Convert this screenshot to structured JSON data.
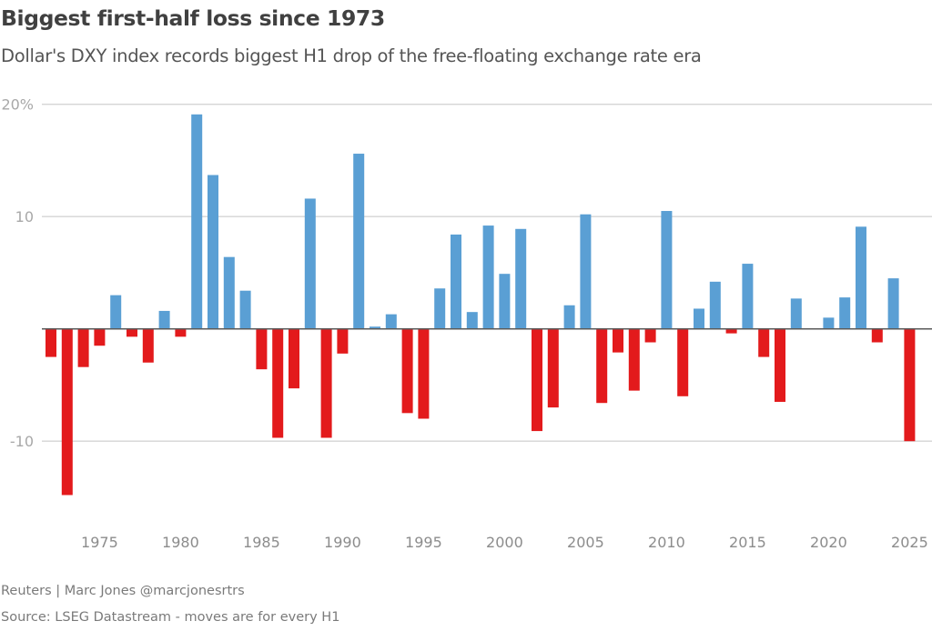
{
  "header": {
    "title": "Biggest first-half loss since 1973",
    "subtitle": "Dollar's DXY index records biggest H1 drop of the free-floating exchange rate era"
  },
  "footer": {
    "credit": "Reuters | Marc Jones @marcjonesrtrs",
    "source": "Source: LSEG Datastream - moves are for every H1"
  },
  "colors": {
    "positive": "#5a9fd4",
    "negative": "#e31a1c",
    "zero_line": "#5a5a5a",
    "grid": "#d4d4d4"
  },
  "chart_data": {
    "type": "bar",
    "title": "Biggest first-half loss since 1973",
    "subtitle": "Dollar's DXY index records biggest H1 drop of the free-floating exchange rate era",
    "xlabel": "",
    "ylabel": "",
    "ylim": [
      -17,
      20
    ],
    "yticks": [
      20,
      10,
      -10
    ],
    "ytick_labels": [
      "20%",
      "10",
      "-10"
    ],
    "xtick_labels": [
      "1975",
      "1980",
      "1985",
      "1990",
      "1995",
      "2000",
      "2005",
      "2010",
      "2015",
      "2020",
      "2025"
    ],
    "grid": true,
    "legend": "none",
    "categories": [
      1972,
      1973,
      1974,
      1975,
      1976,
      1977,
      1978,
      1979,
      1980,
      1981,
      1982,
      1983,
      1984,
      1985,
      1986,
      1987,
      1988,
      1989,
      1990,
      1991,
      1992,
      1993,
      1994,
      1995,
      1996,
      1997,
      1998,
      1999,
      2000,
      2001,
      2002,
      2003,
      2004,
      2005,
      2006,
      2007,
      2008,
      2009,
      2010,
      2011,
      2012,
      2013,
      2014,
      2015,
      2016,
      2017,
      2018,
      2019,
      2020,
      2021,
      2022,
      2023,
      2024,
      2025
    ],
    "values": [
      -2.5,
      -14.8,
      -3.4,
      -1.5,
      3.0,
      -0.7,
      -3.0,
      1.6,
      -0.7,
      19.1,
      13.7,
      6.4,
      3.4,
      -3.6,
      -9.7,
      -5.3,
      11.6,
      -9.7,
      -2.2,
      15.6,
      0.2,
      1.3,
      -7.5,
      -8.0,
      3.6,
      8.4,
      1.5,
      9.2,
      4.9,
      8.9,
      -9.1,
      -7.0,
      2.1,
      10.2,
      -6.6,
      -2.1,
      -5.5,
      -1.2,
      10.5,
      -6.0,
      1.8,
      4.2,
      -0.4,
      5.8,
      -2.5,
      -6.5,
      2.7,
      0.0,
      1.0,
      2.8,
      9.1,
      -1.2,
      4.5,
      -10.0
    ]
  }
}
